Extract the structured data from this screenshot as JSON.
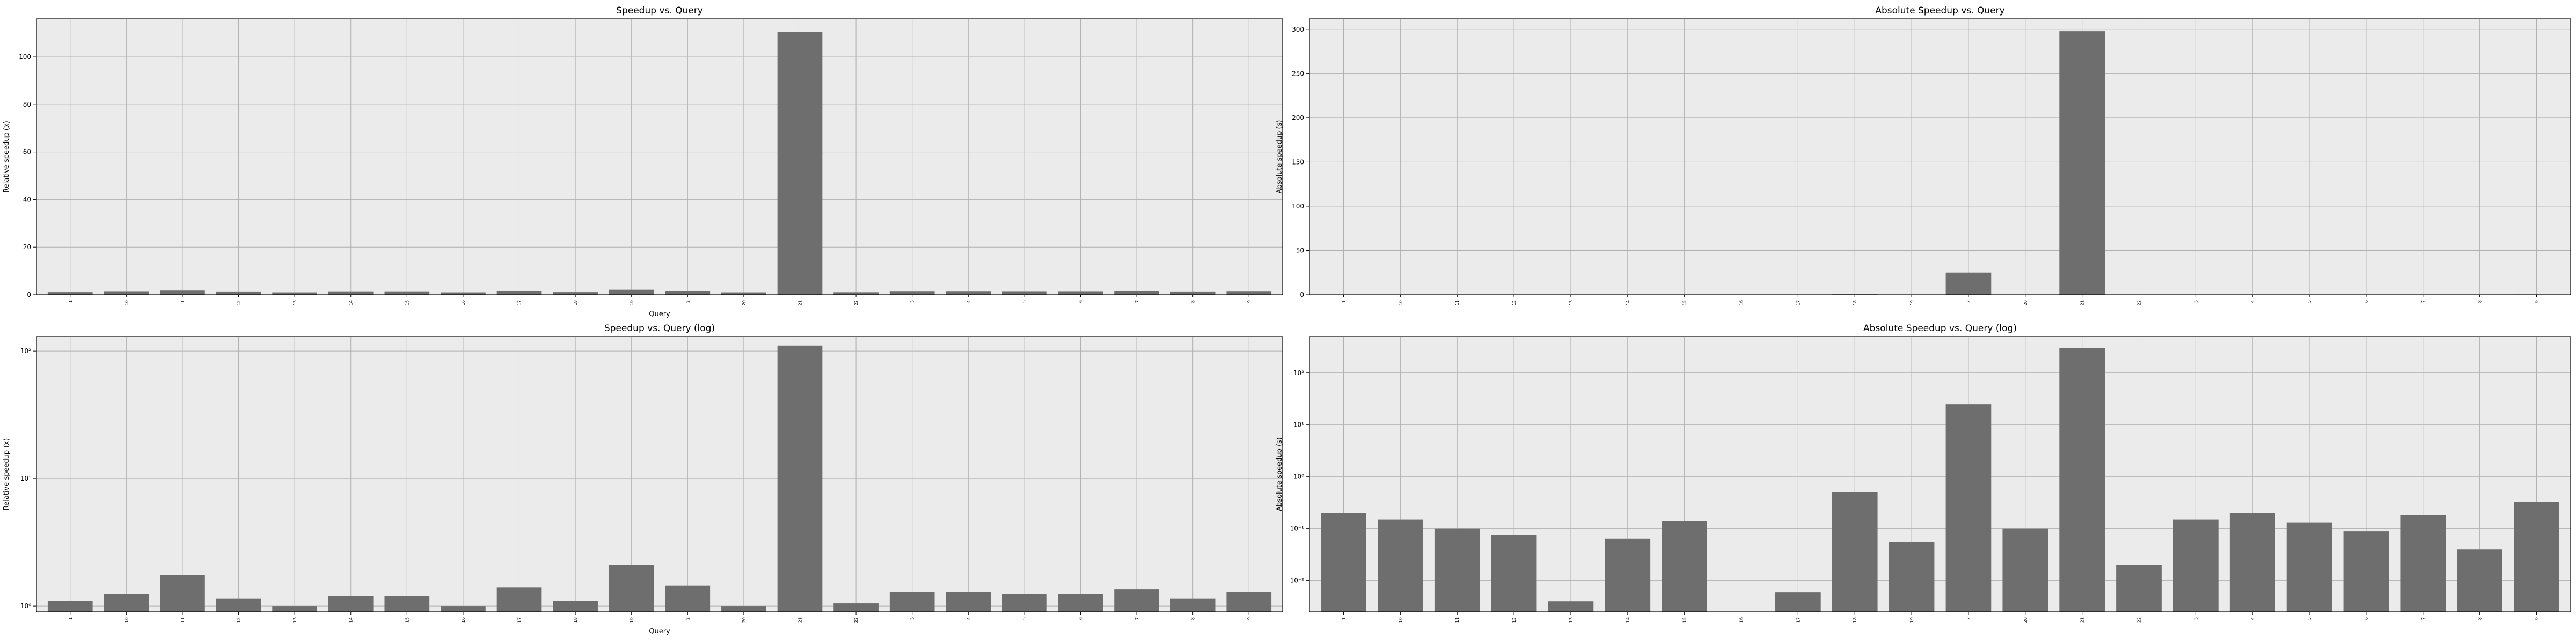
{
  "colors": {
    "bar": "#6e6e6e",
    "axes_bg": "#ebebeb",
    "grid": "#b0b0b0",
    "spine": "#000000"
  },
  "chart_data": [
    {
      "type": "bar",
      "title": "Speedup vs. Query",
      "xlabel": "Query",
      "ylabel": "Relative speedup (x)",
      "scale": "linear",
      "ylim": [
        0,
        116
      ],
      "yticks": [
        0,
        20,
        40,
        60,
        80,
        100
      ],
      "categories": [
        "1",
        "10",
        "11",
        "12",
        "13",
        "14",
        "15",
        "16",
        "17",
        "18",
        "19",
        "2",
        "20",
        "21",
        "22",
        "3",
        "4",
        "5",
        "6",
        "7",
        "8",
        "9"
      ],
      "values": [
        1.1,
        1.25,
        1.75,
        1.15,
        1.0,
        1.2,
        1.2,
        1.0,
        1.4,
        1.1,
        2.1,
        1.45,
        1.0,
        110.5,
        1.05,
        1.3,
        1.3,
        1.25,
        1.25,
        1.35,
        1.15,
        1.3
      ]
    },
    {
      "type": "bar",
      "title": "Absolute Speedup vs. Query",
      "xlabel": "",
      "ylabel": "Absolute speedup (s)",
      "scale": "linear",
      "ylim": [
        0,
        312
      ],
      "yticks": [
        0,
        50,
        100,
        150,
        200,
        250,
        300
      ],
      "categories": [
        "1",
        "10",
        "11",
        "12",
        "13",
        "14",
        "15",
        "16",
        "17",
        "18",
        "19",
        "2",
        "20",
        "21",
        "22",
        "3",
        "4",
        "5",
        "6",
        "7",
        "8",
        "9"
      ],
      "values": [
        0.2,
        0.15,
        0.1,
        0.075,
        0.004,
        0.065,
        0.14,
        0.0015,
        0.006,
        0.5,
        0.055,
        25,
        0.1,
        298,
        0.02,
        0.15,
        0.2,
        0.13,
        0.09,
        0.18,
        0.04,
        0.33
      ]
    },
    {
      "type": "bar",
      "title": "Speedup vs. Query (log)",
      "xlabel": "Query",
      "ylabel": "Relative speedup (x)",
      "scale": "log",
      "ylim": [
        0.9,
        130
      ],
      "yticks": [
        1,
        10,
        100
      ],
      "ytick_labels": [
        "10⁰",
        "10¹",
        "10²"
      ],
      "categories": [
        "1",
        "10",
        "11",
        "12",
        "13",
        "14",
        "15",
        "16",
        "17",
        "18",
        "19",
        "2",
        "20",
        "21",
        "22",
        "3",
        "4",
        "5",
        "6",
        "7",
        "8",
        "9"
      ],
      "values": [
        1.1,
        1.25,
        1.75,
        1.15,
        1.0,
        1.2,
        1.2,
        1.0,
        1.4,
        1.1,
        2.1,
        1.45,
        1.0,
        110.5,
        1.05,
        1.3,
        1.3,
        1.25,
        1.25,
        1.35,
        1.15,
        1.3
      ]
    },
    {
      "type": "bar",
      "title": "Absolute Speedup vs. Query (log)",
      "xlabel": "",
      "ylabel": "Absolute speedup (s)",
      "scale": "log",
      "ylim": [
        0.0025,
        500
      ],
      "yticks": [
        0.01,
        0.1,
        1,
        10,
        100
      ],
      "ytick_labels": [
        "10⁻²",
        "10⁻¹",
        "10⁰",
        "10¹",
        "10²"
      ],
      "categories": [
        "1",
        "10",
        "11",
        "12",
        "13",
        "14",
        "15",
        "16",
        "17",
        "18",
        "19",
        "2",
        "20",
        "21",
        "22",
        "3",
        "4",
        "5",
        "6",
        "7",
        "8",
        "9"
      ],
      "values": [
        0.2,
        0.15,
        0.1,
        0.075,
        0.004,
        0.065,
        0.14,
        0.0015,
        0.006,
        0.5,
        0.055,
        25,
        0.1,
        298,
        0.02,
        0.15,
        0.2,
        0.13,
        0.09,
        0.18,
        0.04,
        0.33
      ]
    }
  ]
}
